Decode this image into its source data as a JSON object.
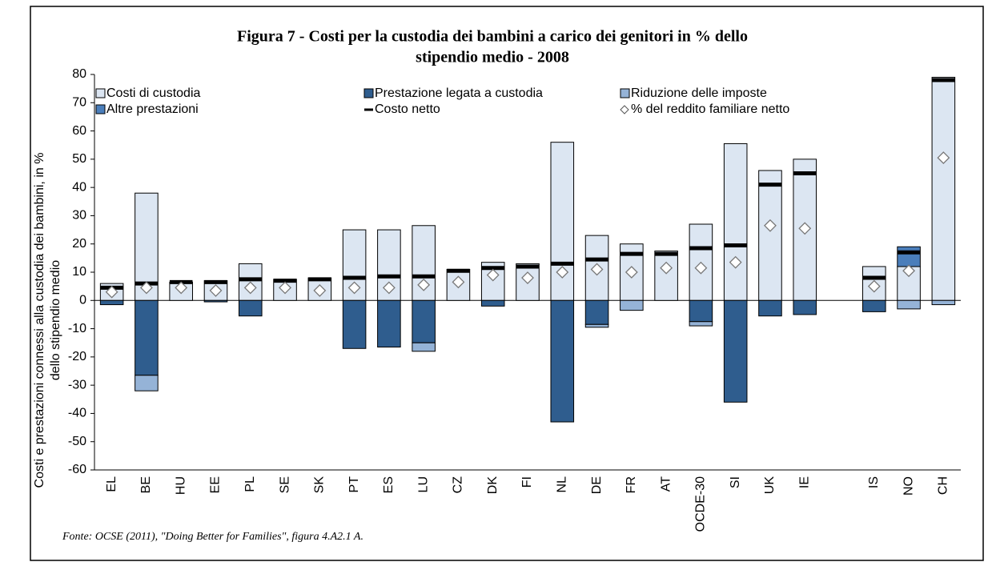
{
  "chart_data": {
    "type": "stacked-bar",
    "title": [
      "Figura 7 - Costi per la custodia dei bambini  a carico dei genitori in % dello",
      "stipendio medio - 2008"
    ],
    "y_label": [
      "Costi e prestazioni connessi alla custodia dei bambini, in %",
      "dello stipendio medio"
    ],
    "note": "Fonte: OCSE (2011), \"Doing Better for Families\", figura 4.A2.1 A.",
    "categories": [
      "EL",
      "BE",
      "HU",
      "EE",
      "PL",
      "SE",
      "SK",
      "PT",
      "ES",
      "LU",
      "CZ",
      "DK",
      "FI",
      "NL",
      "DE",
      "FR",
      "AT",
      "OCDE-30",
      "SI",
      "UK",
      "IE",
      null,
      "IS",
      "NO",
      "CH"
    ],
    "series": [
      {
        "name": "Costi di custodia",
        "kind": "bar",
        "color": "#dce6f2",
        "values": [
          6,
          38,
          6.5,
          7,
          13,
          7.5,
          8,
          25,
          25,
          26.5,
          11,
          13.5,
          13,
          56,
          23,
          20,
          17.5,
          27,
          55.5,
          46,
          50,
          null,
          12,
          12,
          79
        ]
      },
      {
        "name": "Prestazione legata a custodia",
        "kind": "bar",
        "color": "#2f5d8e",
        "values": [
          -1.5,
          -26.5,
          0,
          -0.5,
          -5.5,
          0,
          0,
          -17,
          -16.5,
          -15,
          0,
          -2,
          0,
          -43,
          -8.5,
          0,
          0,
          -7.5,
          -36,
          -5.5,
          -5,
          null,
          -4,
          0,
          0
        ]
      },
      {
        "name": "Riduzione delle imposte",
        "kind": "bar",
        "color": "#95b3d7",
        "values": [
          0,
          -5.5,
          0,
          0,
          0,
          0,
          0,
          0,
          0,
          -3,
          0,
          0,
          0,
          0,
          -1,
          -3.5,
          0,
          -1.5,
          0,
          0,
          0,
          null,
          0,
          -3,
          -1.5
        ]
      },
      {
        "name": "Altre prestazioni",
        "kind": "bar",
        "color": "#4a7ebb",
        "values": [
          0,
          0,
          0,
          0,
          0,
          0,
          0,
          0,
          0,
          0,
          0,
          0,
          0,
          0,
          0,
          0,
          0,
          0,
          0,
          0,
          0,
          null,
          0,
          7,
          0
        ]
      },
      {
        "name": "Costo netto",
        "kind": "dash",
        "color": "#000000",
        "values": [
          4.5,
          6,
          6.5,
          6.5,
          7.5,
          7,
          7.5,
          8,
          8.5,
          8.5,
          10.5,
          11.5,
          12,
          13,
          14.5,
          16.5,
          16.5,
          18.5,
          19.5,
          41,
          45,
          null,
          8,
          17,
          78
        ]
      },
      {
        "name": "% del reddito familiare netto",
        "kind": "diamond",
        "color": "#ffffff",
        "values": [
          3,
          4.5,
          4.5,
          3.5,
          4.5,
          4.5,
          3.5,
          4.5,
          4.5,
          5.5,
          6.5,
          9,
          8,
          10,
          11,
          10,
          11.5,
          11.5,
          13.5,
          26.5,
          25.5,
          null,
          5,
          10.5,
          50.5
        ]
      }
    ],
    "ylim": [
      -60,
      80
    ],
    "yticks": [
      -60,
      -50,
      -40,
      -30,
      -20,
      -10,
      0,
      10,
      20,
      30,
      40,
      50,
      60,
      70,
      80
    ]
  }
}
